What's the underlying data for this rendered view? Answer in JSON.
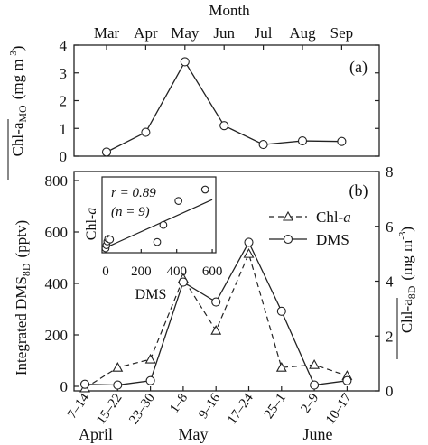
{
  "chart_data": [
    {
      "type": "line",
      "panel_label": "(a)",
      "title": "Month",
      "ylabel_main": "Chl-a",
      "ylabel_sub": "MO",
      "ylabel_unit": "(mg m",
      "ylabel_exp": "-3",
      "ylabel_close": ")",
      "ylim": [
        0,
        4
      ],
      "yticks": [
        "0",
        "1",
        "2",
        "3",
        "4"
      ],
      "categories": [
        "Mar",
        "Apr",
        "May",
        "Jun",
        "Jul",
        "Aug",
        "Sep"
      ],
      "series": [
        {
          "name": "",
          "marker": "circle",
          "values": [
            0.15,
            0.86,
            3.4,
            1.1,
            0.42,
            0.55,
            0.53
          ]
        }
      ]
    },
    {
      "type": "line",
      "panel_label": "(b)",
      "ylabel_left_main": "Integrated DMS",
      "ylabel_left_sub": "8D",
      "ylabel_left_unit": "(pptv)",
      "ylabel_right_main": "Chl-a",
      "ylabel_right_sub": "8D",
      "ylabel_right_unit": "(mg m",
      "ylabel_right_exp": "-3",
      "ylabel_right_close": ")",
      "ylim_left": [
        0,
        800
      ],
      "ylim_right": [
        0,
        8
      ],
      "yticks_left": [
        "0",
        "200",
        "400",
        "600",
        "800"
      ],
      "yticks_right": [
        "0",
        "2",
        "4",
        "6",
        "8"
      ],
      "categories": [
        "7–14",
        "15–22",
        "23–30",
        "1–8",
        "9–16",
        "17–24",
        "25–1",
        "2–9",
        "10–17"
      ],
      "months": [
        "April",
        "May",
        "June"
      ],
      "legend": {
        "position": "right",
        "chl_label": "Chl-",
        "chl_italic": "a",
        "dms_label": "DMS"
      },
      "series": [
        {
          "name": "Chl-a",
          "axis": "right",
          "style": "dashed",
          "marker": "triangle",
          "values": [
            0.1,
            0.85,
            1.15,
            4.1,
            2.2,
            5.0,
            0.85,
            0.95,
            0.55
          ]
        },
        {
          "name": "DMS",
          "axis": "left",
          "style": "solid",
          "marker": "circle",
          "values": [
            8,
            5,
            22,
            405,
            328,
            560,
            292,
            5,
            22
          ]
        }
      ],
      "inset": {
        "type": "scatter",
        "xlabel": "DMS",
        "ylabel_main": "Chl-",
        "ylabel_italic": "a",
        "xlim": [
          -20,
          620
        ],
        "xticks": [
          "0",
          "200",
          "400",
          "600"
        ],
        "annotation_r": "r = 0.89",
        "annotation_n": "(n = 9)",
        "points": [
          {
            "x": 0,
            "y": 0.35
          },
          {
            "x": 5,
            "y": 0.6
          },
          {
            "x": 10,
            "y": 0.9
          },
          {
            "x": 15,
            "y": 1.1
          },
          {
            "x": 25,
            "y": 1.05
          },
          {
            "x": 290,
            "y": 0.85
          },
          {
            "x": 325,
            "y": 2.2
          },
          {
            "x": 410,
            "y": 4.1
          },
          {
            "x": 560,
            "y": 5.0
          }
        ],
        "fit": {
          "x": [
            0,
            600
          ],
          "y": [
            0.4,
            4.2
          ]
        }
      }
    }
  ]
}
